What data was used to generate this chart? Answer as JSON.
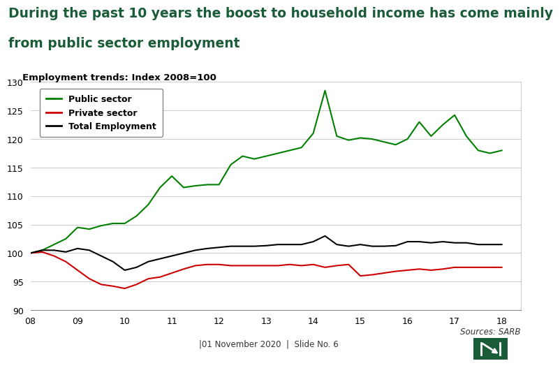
{
  "title_line1": "During the past 10 years the boost to household income has come mainly",
  "title_line2": "from public sector employment",
  "subtitle": "Employment trends: Index 2008=100",
  "title_color": "#1a5c38",
  "title_fontsize": 13.5,
  "subtitle_fontsize": 9.5,
  "background_color": "#ffffff",
  "plot_bg_color": "#ffffff",
  "ylim": [
    90,
    130
  ],
  "yticks": [
    90,
    95,
    100,
    105,
    110,
    115,
    120,
    125,
    130
  ],
  "xlim": [
    2008.0,
    2018.4
  ],
  "xticks": [
    2008,
    2009,
    2010,
    2011,
    2012,
    2013,
    2014,
    2015,
    2016,
    2017,
    2018
  ],
  "xticklabels": [
    "08",
    "09",
    "10",
    "11",
    "12",
    "13",
    "14",
    "15",
    "16",
    "17",
    "18"
  ],
  "source_text": "Sources: SARB",
  "footer_text": "|01 November 2020  |  Slide No. 6",
  "public_color": "#008000",
  "private_color": "#cc0000",
  "total_color": "#000000",
  "public_x": [
    2008.0,
    2008.25,
    2008.5,
    2008.75,
    2009.0,
    2009.25,
    2009.5,
    2009.75,
    2010.0,
    2010.25,
    2010.5,
    2010.75,
    2011.0,
    2011.25,
    2011.5,
    2011.75,
    2012.0,
    2012.25,
    2012.5,
    2012.75,
    2013.0,
    2013.25,
    2013.5,
    2013.75,
    2014.0,
    2014.25,
    2014.5,
    2014.75,
    2015.0,
    2015.25,
    2015.5,
    2015.75,
    2016.0,
    2016.25,
    2016.5,
    2016.75,
    2017.0,
    2017.25,
    2017.5,
    2017.75,
    2018.0
  ],
  "public_y": [
    100.0,
    100.5,
    101.5,
    102.5,
    104.5,
    104.2,
    104.8,
    105.2,
    105.2,
    106.5,
    108.5,
    111.5,
    113.5,
    111.5,
    111.8,
    112.0,
    112.0,
    115.5,
    117.0,
    116.5,
    117.0,
    117.5,
    118.0,
    118.5,
    121.0,
    128.5,
    120.5,
    119.8,
    120.2,
    120.0,
    119.5,
    119.0,
    120.0,
    123.0,
    120.5,
    122.5,
    124.2,
    120.5,
    118.0,
    117.5,
    118.0
  ],
  "private_x": [
    2008.0,
    2008.25,
    2008.5,
    2008.75,
    2009.0,
    2009.25,
    2009.5,
    2009.75,
    2010.0,
    2010.25,
    2010.5,
    2010.75,
    2011.0,
    2011.25,
    2011.5,
    2011.75,
    2012.0,
    2012.25,
    2012.5,
    2012.75,
    2013.0,
    2013.25,
    2013.5,
    2013.75,
    2014.0,
    2014.25,
    2014.5,
    2014.75,
    2015.0,
    2015.25,
    2015.5,
    2015.75,
    2016.0,
    2016.25,
    2016.5,
    2016.75,
    2017.0,
    2017.25,
    2017.5,
    2017.75,
    2018.0
  ],
  "private_y": [
    100.0,
    100.2,
    99.5,
    98.5,
    97.0,
    95.5,
    94.5,
    94.2,
    93.8,
    94.5,
    95.5,
    95.8,
    96.5,
    97.2,
    97.8,
    98.0,
    98.0,
    97.8,
    97.8,
    97.8,
    97.8,
    97.8,
    98.0,
    97.8,
    98.0,
    97.5,
    97.8,
    98.0,
    96.0,
    96.2,
    96.5,
    96.8,
    97.0,
    97.2,
    97.0,
    97.2,
    97.5,
    97.5,
    97.5,
    97.5,
    97.5
  ],
  "total_x": [
    2008.0,
    2008.25,
    2008.5,
    2008.75,
    2009.0,
    2009.25,
    2009.5,
    2009.75,
    2010.0,
    2010.25,
    2010.5,
    2010.75,
    2011.0,
    2011.25,
    2011.5,
    2011.75,
    2012.0,
    2012.25,
    2012.5,
    2012.75,
    2013.0,
    2013.25,
    2013.5,
    2013.75,
    2014.0,
    2014.25,
    2014.5,
    2014.75,
    2015.0,
    2015.25,
    2015.5,
    2015.75,
    2016.0,
    2016.25,
    2016.5,
    2016.75,
    2017.0,
    2017.25,
    2017.5,
    2017.75,
    2018.0
  ],
  "total_y": [
    100.0,
    100.5,
    100.5,
    100.2,
    100.8,
    100.5,
    99.5,
    98.5,
    97.0,
    97.5,
    98.5,
    99.0,
    99.5,
    100.0,
    100.5,
    100.8,
    101.0,
    101.2,
    101.2,
    101.2,
    101.3,
    101.5,
    101.5,
    101.5,
    102.0,
    103.0,
    101.5,
    101.2,
    101.5,
    101.2,
    101.2,
    101.3,
    102.0,
    102.0,
    101.8,
    102.0,
    101.8,
    101.8,
    101.5,
    101.5,
    101.5
  ]
}
